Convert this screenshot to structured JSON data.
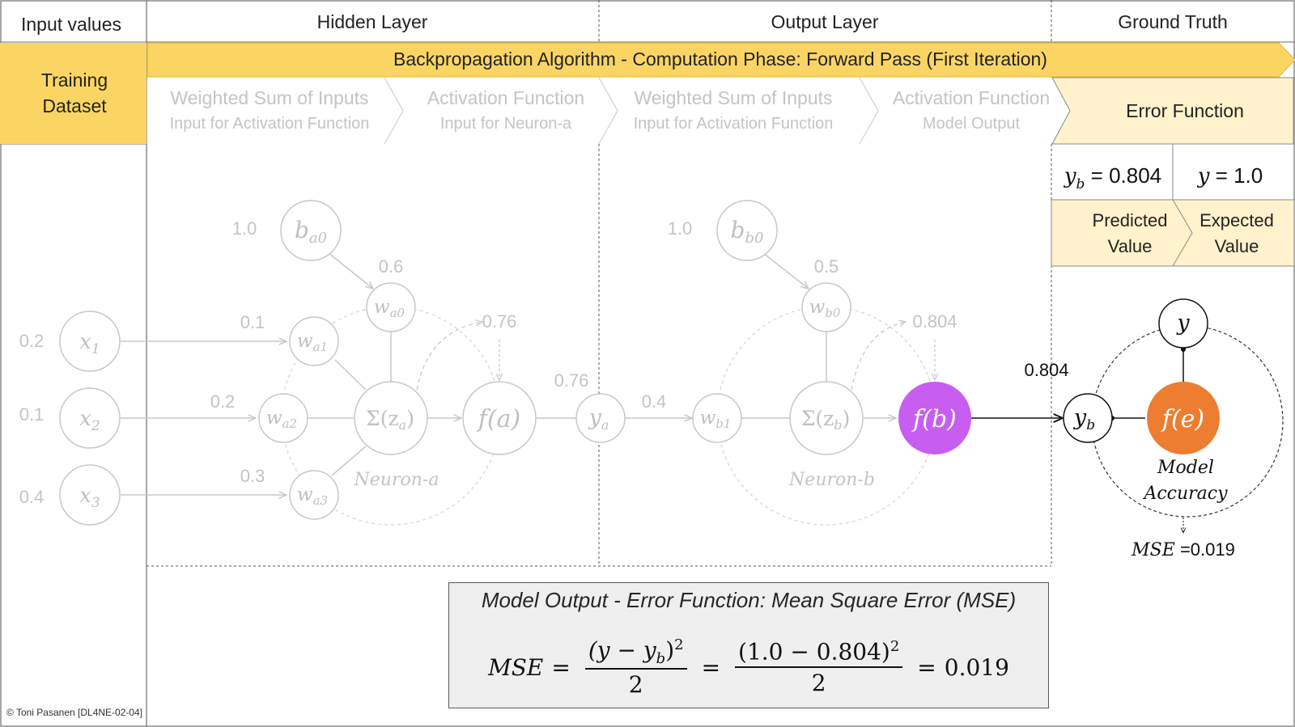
{
  "header": {
    "input_values": "Input values",
    "hidden_layer": "Hidden Layer",
    "output_layer": "Output Layer",
    "ground_truth": "Ground Truth"
  },
  "banner": {
    "title_bold": "Backpropagation Algorithm",
    "title_rest": " - Computation Phase: Forward Pass (First Iteration)",
    "color": "#fbd564"
  },
  "training_dataset": {
    "line1": "Training",
    "line2": "Dataset"
  },
  "steps": [
    {
      "line1": "Weighted Sum of Inputs",
      "line2": "Input for Activation Function"
    },
    {
      "line1": "Activation Function",
      "line2": "Input for Neuron-a"
    },
    {
      "line1": "Weighted Sum of Inputs",
      "line2": "Input for Activation Function"
    },
    {
      "line1": "Activation Function",
      "line2": "Model Output"
    }
  ],
  "error_function": "Error Function",
  "ground_truth_panel": {
    "yb_label": "y",
    "yb_sub": "b",
    "yb_value": " = 0.804",
    "y_label": "y",
    "y_value": " = 1.0",
    "predicted_1": "Predicted",
    "predicted_2": "Value",
    "expected_1": "Expected",
    "expected_2": "Value"
  },
  "inputs": [
    {
      "label": "x",
      "sub": "1",
      "value": "0.2"
    },
    {
      "label": "x",
      "sub": "2",
      "value": "0.1"
    },
    {
      "label": "x",
      "sub": "3",
      "value": "0.4"
    }
  ],
  "neuron_a": {
    "bias_label": "b",
    "bias_sub": "a0",
    "bias_value": "1.0",
    "weights": [
      {
        "label": "w",
        "sub": "a0",
        "value": "0.6"
      },
      {
        "label": "w",
        "sub": "a1",
        "value": "0.1"
      },
      {
        "label": "w",
        "sub": "a2",
        "value": "0.2"
      },
      {
        "label": "w",
        "sub": "a3",
        "value": "0.3"
      }
    ],
    "sum_label": "Σ(z",
    "sum_sub": "a",
    "sum_close": ")",
    "activation_label": "f(a)",
    "activation_output": "0.76",
    "name": "Neuron-a"
  },
  "ya": {
    "label": "y",
    "sub": "a",
    "value": "0.76"
  },
  "neuron_b": {
    "bias_label": "b",
    "bias_sub": "b0",
    "bias_value": "1.0",
    "weights": [
      {
        "label": "w",
        "sub": "b0",
        "value": "0.5"
      },
      {
        "label": "w",
        "sub": "b1",
        "value": "0.4"
      }
    ],
    "sum_label": "Σ(z",
    "sum_sub": "b",
    "sum_close": ")",
    "activation_label": "f(b)",
    "activation_output": "0.804",
    "name": "Neuron-b",
    "activation_color": "#c85ef0"
  },
  "output_value": "0.804",
  "error_node": {
    "y_label": "y",
    "yb_label": "y",
    "yb_sub": "b",
    "fe_label": "f(e)",
    "fe_color": "#ed7d31",
    "caption_1": "Model",
    "caption_2": "Accuracy",
    "mse_label": "MSE",
    "mse_value": " =0.019"
  },
  "mse_box": {
    "title": "Model Output - Error Function: Mean Square Error (MSE)",
    "lhs": "MSE",
    "num1_a": "(y − y",
    "num1_sub": "b",
    "num1_b": ")",
    "num1_exp": "2",
    "den": "2",
    "num2": "(1.0 − 0.804)",
    "num2_exp": "2",
    "result": "0.019"
  },
  "credit": "© Toni Pasanen [DL4NE-02-04]"
}
